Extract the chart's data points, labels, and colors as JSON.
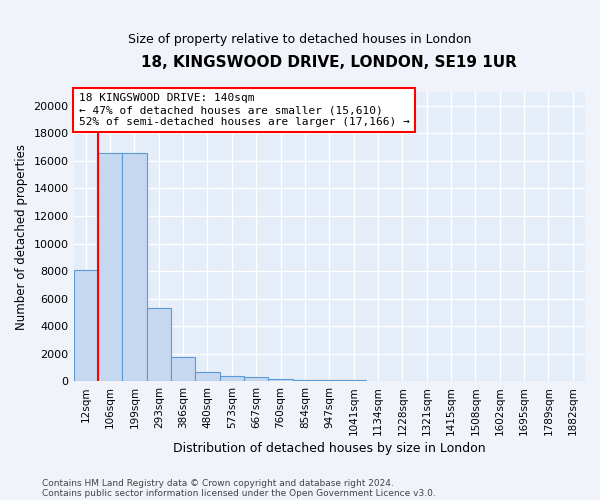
{
  "title1": "18, KINGSWOOD DRIVE, LONDON, SE19 1UR",
  "title2": "Size of property relative to detached houses in London",
  "xlabel": "Distribution of detached houses by size in London",
  "ylabel": "Number of detached properties",
  "annotation_title": "18 KINGSWOOD DRIVE: 140sqm",
  "annotation_line1": "← 47% of detached houses are smaller (15,610)",
  "annotation_line2": "52% of semi-detached houses are larger (17,166) →",
  "footer1": "Contains HM Land Registry data © Crown copyright and database right 2024.",
  "footer2": "Contains public sector information licensed under the Open Government Licence v3.0.",
  "bar_color": "#c5d8f0",
  "bar_edge_color": "#5b9bd5",
  "red_line_x": 0.5,
  "categories": [
    "12sqm",
    "106sqm",
    "199sqm",
    "293sqm",
    "386sqm",
    "480sqm",
    "573sqm",
    "667sqm",
    "760sqm",
    "854sqm",
    "947sqm",
    "1041sqm",
    "1134sqm",
    "1228sqm",
    "1321sqm",
    "1415sqm",
    "1508sqm",
    "1602sqm",
    "1695sqm",
    "1789sqm",
    "1882sqm"
  ],
  "values": [
    8100,
    16600,
    16600,
    5300,
    1800,
    700,
    400,
    300,
    200,
    120,
    90,
    70,
    60,
    50,
    50,
    40,
    40,
    30,
    30,
    25,
    20
  ],
  "ylim": [
    0,
    21000
  ],
  "yticks": [
    0,
    2000,
    4000,
    6000,
    8000,
    10000,
    12000,
    14000,
    16000,
    18000,
    20000
  ],
  "background_color": "#f0f4fa",
  "plot_bg_color": "#e4edf8"
}
